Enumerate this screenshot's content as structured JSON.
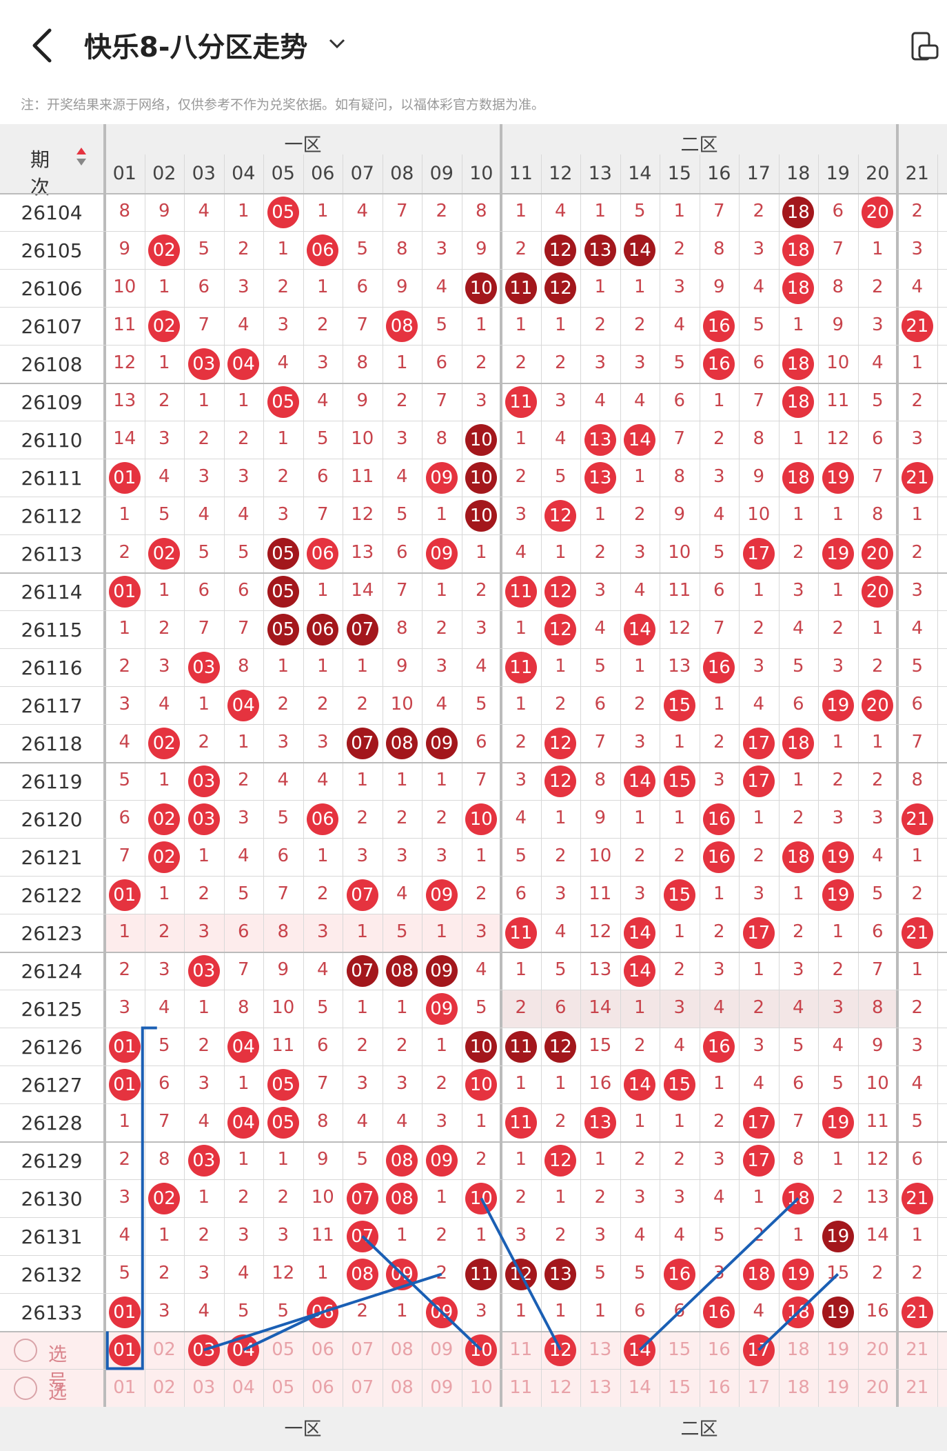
{
  "header": {
    "title": "快乐8-八分区走势"
  },
  "note": "注：开奖结果来源于网络，仅供参考不作为兑奖依据。如有疑问，以福体彩官方数据为准。",
  "table": {
    "period_label": "期次",
    "zones": [
      "一区",
      "二区"
    ],
    "col_headers": [
      "01",
      "02",
      "03",
      "04",
      "05",
      "06",
      "07",
      "08",
      "09",
      "10",
      "11",
      "12",
      "13",
      "14",
      "15",
      "16",
      "17",
      "18",
      "19",
      "20",
      "21"
    ],
    "rows": [
      {
        "p": "26104",
        "v": [
          8,
          9,
          4,
          1,
          "05",
          1,
          4,
          7,
          2,
          8,
          1,
          4,
          1,
          5,
          1,
          7,
          2,
          "18",
          6,
          "20",
          2
        ]
      },
      {
        "p": "26105",
        "v": [
          9,
          "02",
          5,
          2,
          1,
          "06",
          5,
          8,
          3,
          9,
          2,
          "12",
          "13",
          "14",
          2,
          8,
          3,
          "18",
          7,
          1,
          3
        ]
      },
      {
        "p": "26106",
        "v": [
          10,
          1,
          6,
          3,
          2,
          1,
          6,
          9,
          4,
          "10",
          "11",
          "12",
          1,
          1,
          3,
          9,
          4,
          "18",
          8,
          2,
          4
        ]
      },
      {
        "p": "26107",
        "v": [
          11,
          "02",
          7,
          4,
          3,
          2,
          7,
          "08",
          5,
          1,
          1,
          1,
          2,
          2,
          4,
          "16",
          5,
          1,
          9,
          3,
          "21"
        ]
      },
      {
        "p": "26108",
        "v": [
          12,
          1,
          "03",
          "04",
          4,
          3,
          8,
          1,
          6,
          2,
          2,
          2,
          3,
          3,
          5,
          "16",
          6,
          "18",
          10,
          4,
          1
        ]
      },
      {
        "p": "26109",
        "v": [
          13,
          2,
          1,
          1,
          "05",
          4,
          9,
          2,
          7,
          3,
          "11",
          3,
          4,
          4,
          6,
          1,
          7,
          "18",
          11,
          5,
          2
        ]
      },
      {
        "p": "26110",
        "v": [
          14,
          3,
          2,
          2,
          1,
          5,
          10,
          3,
          8,
          "10",
          1,
          4,
          "13",
          "14",
          7,
          2,
          8,
          1,
          12,
          6,
          3
        ]
      },
      {
        "p": "26111",
        "v": [
          "01",
          4,
          3,
          3,
          2,
          6,
          11,
          4,
          "09",
          "10",
          2,
          5,
          "13",
          1,
          8,
          3,
          9,
          "18",
          "19",
          7,
          "21"
        ]
      },
      {
        "p": "26112",
        "v": [
          1,
          5,
          4,
          4,
          3,
          7,
          12,
          5,
          1,
          "10",
          3,
          "12",
          1,
          2,
          9,
          4,
          10,
          1,
          1,
          8,
          1
        ]
      },
      {
        "p": "26113",
        "v": [
          2,
          "02",
          5,
          5,
          "05",
          "06",
          13,
          6,
          "09",
          1,
          4,
          1,
          2,
          3,
          10,
          5,
          "17",
          2,
          "19",
          "20",
          2
        ]
      },
      {
        "p": "26114",
        "v": [
          "01",
          1,
          6,
          6,
          "05",
          1,
          14,
          7,
          1,
          2,
          "11",
          "12",
          3,
          4,
          11,
          6,
          1,
          3,
          1,
          "20",
          3
        ]
      },
      {
        "p": "26115",
        "v": [
          1,
          2,
          7,
          7,
          "05",
          "06",
          "07",
          8,
          2,
          3,
          1,
          "12",
          4,
          "14",
          12,
          7,
          2,
          4,
          2,
          1,
          4
        ]
      },
      {
        "p": "26116",
        "v": [
          2,
          3,
          "03",
          8,
          1,
          1,
          1,
          9,
          3,
          4,
          "11",
          1,
          5,
          1,
          13,
          "16",
          3,
          5,
          3,
          2,
          5
        ]
      },
      {
        "p": "26117",
        "v": [
          3,
          4,
          1,
          "04",
          2,
          2,
          2,
          10,
          4,
          5,
          1,
          2,
          6,
          2,
          "15",
          1,
          4,
          6,
          "19",
          "20",
          6
        ]
      },
      {
        "p": "26118",
        "v": [
          4,
          "02",
          2,
          1,
          3,
          3,
          "07",
          "08",
          "09",
          6,
          2,
          "12",
          7,
          3,
          1,
          2,
          "17",
          "18",
          1,
          1,
          7
        ]
      },
      {
        "p": "26119",
        "v": [
          5,
          1,
          "03",
          2,
          4,
          4,
          1,
          1,
          1,
          7,
          3,
          "12",
          8,
          "14",
          "15",
          3,
          "17",
          1,
          2,
          2,
          8
        ]
      },
      {
        "p": "26120",
        "v": [
          6,
          "02",
          "03",
          3,
          5,
          "06",
          2,
          2,
          2,
          "10",
          4,
          1,
          9,
          1,
          1,
          "16",
          1,
          2,
          3,
          3,
          "21"
        ]
      },
      {
        "p": "26121",
        "v": [
          7,
          "02",
          1,
          4,
          6,
          1,
          3,
          3,
          3,
          1,
          5,
          2,
          10,
          2,
          2,
          "16",
          2,
          "18",
          "19",
          4,
          1
        ]
      },
      {
        "p": "26122",
        "v": [
          "01",
          1,
          2,
          5,
          7,
          2,
          "07",
          4,
          "09",
          2,
          6,
          3,
          11,
          3,
          "15",
          1,
          3,
          1,
          "19",
          5,
          2
        ]
      },
      {
        "p": "26123",
        "v": [
          1,
          2,
          3,
          6,
          8,
          3,
          1,
          5,
          1,
          3,
          "11",
          4,
          12,
          "14",
          1,
          2,
          "17",
          2,
          1,
          6,
          "21"
        ]
      },
      {
        "p": "26124",
        "v": [
          2,
          3,
          "03",
          7,
          9,
          4,
          "07",
          "08",
          "09",
          4,
          1,
          5,
          13,
          "14",
          2,
          3,
          1,
          3,
          2,
          7,
          1
        ]
      },
      {
        "p": "26125",
        "v": [
          3,
          4,
          1,
          8,
          10,
          5,
          1,
          1,
          "09",
          5,
          2,
          6,
          14,
          1,
          3,
          4,
          2,
          4,
          3,
          8,
          2
        ]
      },
      {
        "p": "26126",
        "v": [
          "01",
          5,
          2,
          "04",
          11,
          6,
          2,
          2,
          1,
          "10",
          "11",
          "12",
          15,
          2,
          4,
          "16",
          3,
          5,
          4,
          9,
          3
        ]
      },
      {
        "p": "26127",
        "v": [
          "01",
          6,
          3,
          1,
          "05",
          7,
          3,
          3,
          2,
          "10",
          1,
          1,
          16,
          "14",
          "15",
          1,
          4,
          6,
          5,
          10,
          4
        ]
      },
      {
        "p": "26128",
        "v": [
          1,
          7,
          4,
          "04",
          "05",
          8,
          4,
          4,
          3,
          1,
          "11",
          2,
          "13",
          1,
          1,
          2,
          "17",
          7,
          "19",
          11,
          5
        ]
      },
      {
        "p": "26129",
        "v": [
          2,
          8,
          "03",
          1,
          1,
          9,
          5,
          "08",
          "09",
          2,
          1,
          "12",
          1,
          2,
          2,
          3,
          "17",
          8,
          1,
          12,
          6
        ]
      },
      {
        "p": "26130",
        "v": [
          3,
          "02",
          1,
          2,
          2,
          10,
          "07",
          "08",
          1,
          "10",
          2,
          1,
          2,
          3,
          3,
          4,
          1,
          "18",
          2,
          13,
          "21"
        ]
      },
      {
        "p": "26131",
        "v": [
          4,
          1,
          2,
          3,
          3,
          11,
          "07",
          1,
          2,
          1,
          3,
          2,
          3,
          4,
          4,
          5,
          2,
          1,
          "19",
          14,
          1
        ]
      },
      {
        "p": "26132",
        "v": [
          5,
          2,
          3,
          4,
          12,
          1,
          "08",
          "09",
          2,
          "11",
          "12",
          "13",
          5,
          5,
          "16",
          3,
          "18",
          "19",
          15,
          2,
          2
        ]
      },
      {
        "p": "26133",
        "v": [
          "01",
          3,
          4,
          5,
          5,
          "06",
          2,
          1,
          "09",
          3,
          1,
          1,
          1,
          6,
          6,
          "16",
          4,
          "18",
          "19",
          16,
          "21"
        ]
      }
    ],
    "select_rows": [
      {
        "label": "选号",
        "selected": [
          "01",
          "03",
          "04",
          "10",
          "12",
          "14",
          "17"
        ]
      },
      {
        "label": "选号",
        "selected": []
      }
    ]
  },
  "colors": {
    "red": "#e5333f",
    "darkred": "#a3171c",
    "grid": "#d8d8d8",
    "header_bg": "#efefef",
    "line": "#1a5fb4"
  }
}
